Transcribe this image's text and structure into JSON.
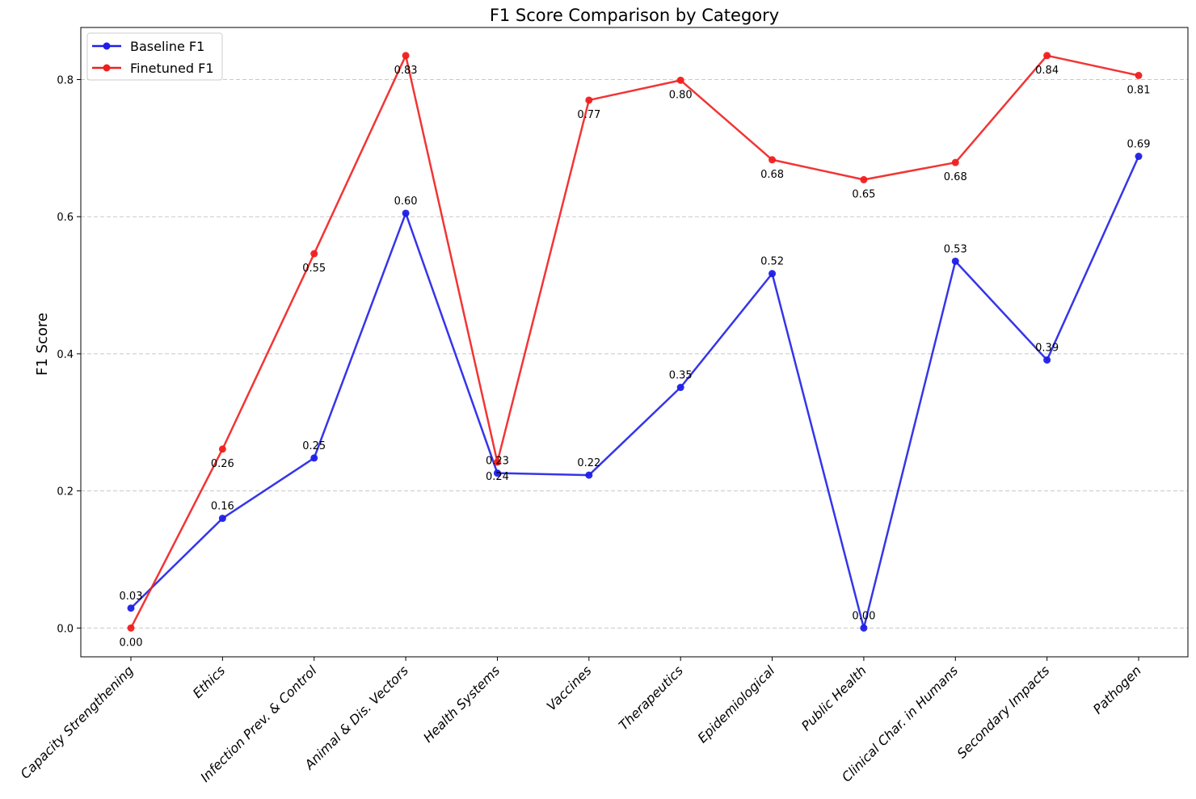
{
  "chart_data": {
    "type": "line",
    "title": "F1 Score Comparison by Category",
    "ylabel": "F1 Score",
    "xlabel": "",
    "ylim": [
      -0.042,
      0.876
    ],
    "yticks": [
      "0.0",
      "0.2",
      "0.4",
      "0.6",
      "0.8"
    ],
    "yticks_values": [
      0.0,
      0.2,
      0.4,
      0.6,
      0.8
    ],
    "grid": "horizontal dashed",
    "legend_position": "top-left",
    "categories": [
      "Capacity Strengthening",
      "Ethics",
      "Infection Prev. & Control",
      "Animal & Dis. Vectors",
      "Health Systems",
      "Vaccines",
      "Therapeutics",
      "Epidemiological",
      "Public Health",
      "Clinical Char. in Humans",
      "Secondary Impacts",
      "Pathogen"
    ],
    "series": [
      {
        "name": "Baseline F1",
        "color": "#1f1fe8",
        "values": [
          0.029,
          0.16,
          0.248,
          0.605,
          0.226,
          0.223,
          0.351,
          0.517,
          0.0,
          0.535,
          0.391,
          0.688
        ],
        "labels": [
          "0.03",
          "0.16",
          "0.25",
          "0.60",
          "0.23",
          "0.22",
          "0.35",
          "0.52",
          "0.00",
          "0.53",
          "0.39",
          "0.69"
        ],
        "label_position": "above"
      },
      {
        "name": "Finetuned F1",
        "color": "#f01f1f",
        "values": [
          0.0,
          0.261,
          0.546,
          0.835,
          0.242,
          0.77,
          0.799,
          0.683,
          0.654,
          0.679,
          0.835,
          0.806
        ],
        "labels": [
          "0.00",
          "0.26",
          "0.55",
          "0.83",
          "0.24",
          "0.77",
          "0.80",
          "0.68",
          "0.65",
          "0.68",
          "0.84",
          "0.81"
        ],
        "label_position": "below"
      }
    ]
  }
}
